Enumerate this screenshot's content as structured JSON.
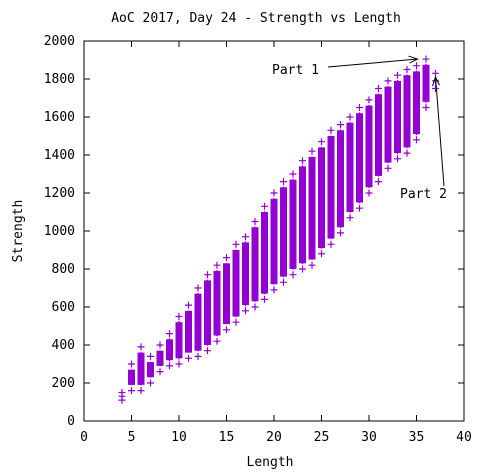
{
  "chart_data": {
    "type": "scatter",
    "title": "AoC 2017, Day 24 - Strength vs Length",
    "xlabel": "Length",
    "ylabel": "Strength",
    "xlim": [
      0,
      40
    ],
    "ylim": [
      0,
      2000
    ],
    "xticks": [
      "0",
      "5",
      "10",
      "15",
      "20",
      "25",
      "30",
      "35",
      "40"
    ],
    "yticks": [
      "0",
      "200",
      "400",
      "600",
      "800",
      "1000",
      "1200",
      "1400",
      "1600",
      "1800",
      "2000"
    ],
    "marker": "+",
    "color": "#9400d3",
    "grid": false,
    "legend": "none",
    "series": [
      {
        "length_range": [
          [
            4,
            110,
            150
          ],
          [
            5,
            160,
            300
          ],
          [
            6,
            160,
            390
          ],
          [
            7,
            200,
            340
          ],
          [
            8,
            260,
            400
          ],
          [
            9,
            290,
            460
          ],
          [
            10,
            300,
            550
          ],
          [
            11,
            330,
            610
          ],
          [
            12,
            340,
            700
          ],
          [
            13,
            370,
            770
          ],
          [
            14,
            420,
            820
          ],
          [
            15,
            480,
            860
          ],
          [
            16,
            520,
            930
          ],
          [
            17,
            580,
            970
          ],
          [
            18,
            600,
            1050
          ],
          [
            19,
            640,
            1130
          ],
          [
            20,
            690,
            1200
          ],
          [
            21,
            730,
            1260
          ],
          [
            22,
            770,
            1300
          ],
          [
            23,
            800,
            1370
          ],
          [
            24,
            820,
            1420
          ],
          [
            25,
            880,
            1470
          ],
          [
            26,
            930,
            1530
          ],
          [
            27,
            990,
            1560
          ],
          [
            28,
            1070,
            1600
          ],
          [
            29,
            1120,
            1650
          ],
          [
            30,
            1200,
            1690
          ],
          [
            31,
            1260,
            1750
          ],
          [
            32,
            1330,
            1790
          ],
          [
            33,
            1380,
            1820
          ],
          [
            34,
            1410,
            1850
          ],
          [
            35,
            1480,
            1870
          ],
          [
            36,
            1650,
            1905
          ],
          [
            37,
            1750,
            1830
          ]
        ]
      }
    ],
    "annotations": [
      {
        "text": "Part 1",
        "target": [
          35,
          1905
        ]
      },
      {
        "text": "Part 2",
        "target": [
          37,
          1810
        ]
      }
    ]
  }
}
